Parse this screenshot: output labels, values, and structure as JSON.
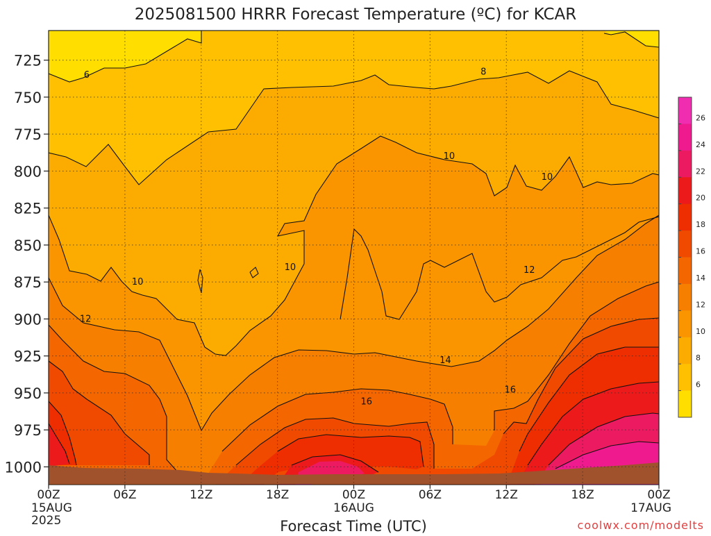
{
  "title": "2025081500 HRRR Forecast Temperature (ºC) for KCAR",
  "xlabel": "Forecast Time (UTC)",
  "credit": "coolwx.com/modelts",
  "colors": {
    "bands": [
      "#ffde00",
      "#fec000",
      "#fcac00",
      "#fa9500",
      "#f77f00",
      "#f46600",
      "#f04a00",
      "#ee2e00",
      "#ec1a1a",
      "#ec1a60",
      "#ee1a8e",
      "#f02cb0"
    ],
    "ground": "#a0522d",
    "text": "#222222",
    "credit": "#e04040"
  },
  "chart_data": {
    "type": "heatmap",
    "variable": "Temperature (ºC)",
    "y_axis": {
      "label": "",
      "ticks": [
        725,
        750,
        775,
        800,
        825,
        850,
        875,
        900,
        925,
        950,
        975,
        1000
      ],
      "inverted": true,
      "range": [
        705,
        1012
      ]
    },
    "x_axis": {
      "label": "Forecast Time (UTC)",
      "range_hours": [
        0,
        48
      ],
      "ticks": [
        {
          "label": "00Z",
          "sub": [
            "15AUG",
            "2025"
          ]
        },
        {
          "label": "06Z",
          "sub": []
        },
        {
          "label": "12Z",
          "sub": []
        },
        {
          "label": "18Z",
          "sub": []
        },
        {
          "label": "00Z",
          "sub": [
            "16AUG"
          ]
        },
        {
          "label": "06Z",
          "sub": []
        },
        {
          "label": "12Z",
          "sub": []
        },
        {
          "label": "18Z",
          "sub": []
        },
        {
          "label": "00Z",
          "sub": [
            "17AUG"
          ]
        }
      ]
    },
    "colorbar": {
      "labels": [
        "26",
        "24",
        "22",
        "20",
        "18",
        "16",
        "14",
        "12",
        "10",
        "8",
        "6"
      ]
    },
    "grid": true,
    "contour_labels": [
      {
        "text": "6",
        "hour": 3.0,
        "pressure": 735
      },
      {
        "text": "8",
        "hour": 34.2,
        "pressure": 733
      },
      {
        "text": "10",
        "hour": 31.5,
        "pressure": 790
      },
      {
        "text": "10",
        "hour": 39.2,
        "pressure": 804
      },
      {
        "text": "10",
        "hour": 7.0,
        "pressure": 875
      },
      {
        "text": "10",
        "hour": 19.0,
        "pressure": 865
      },
      {
        "text": "12",
        "hour": 37.8,
        "pressure": 867
      },
      {
        "text": "12",
        "hour": 2.9,
        "pressure": 900
      },
      {
        "text": "14",
        "hour": 31.2,
        "pressure": 928
      },
      {
        "text": "16",
        "hour": 25.0,
        "pressure": 956
      },
      {
        "text": "16",
        "hour": 36.3,
        "pressure": 948
      }
    ]
  }
}
